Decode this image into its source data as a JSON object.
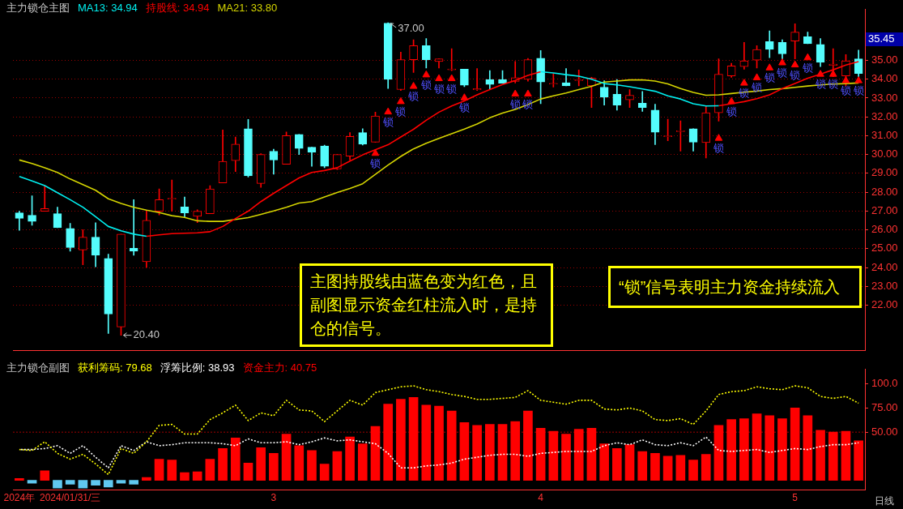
{
  "chart_data": [
    {
      "type": "candlestick",
      "title": "主力锁仓主图",
      "categories": [
        null,
        null,
        null,
        null,
        null,
        null,
        null,
        null,
        null,
        null,
        null,
        null,
        null,
        null,
        null,
        null,
        null,
        null,
        null,
        null,
        null,
        null,
        null,
        null,
        null,
        null,
        null,
        null,
        null,
        null,
        null,
        null,
        null,
        null,
        null,
        null,
        null,
        null,
        null,
        null,
        null,
        null,
        null,
        null,
        null,
        null,
        null,
        null,
        null,
        null,
        null,
        null,
        null,
        null,
        null,
        null,
        null,
        null,
        null,
        null,
        null,
        null,
        null,
        null,
        null,
        null,
        null
      ],
      "ohlc": [
        [
          26.9,
          26.99,
          25.97,
          26.61
        ],
        [
          26.77,
          27.81,
          26.24,
          26.45
        ],
        [
          26.99,
          28.35,
          26.99,
          27.13
        ],
        [
          26.86,
          27.2,
          26.11,
          26.11
        ],
        [
          26.07,
          26.34,
          24.86,
          25.06
        ],
        [
          24.93,
          26.01,
          24.14,
          25.61
        ],
        [
          25.61,
          26.38,
          24.04,
          24.65
        ],
        [
          24.48,
          24.71,
          20.5,
          21.53
        ],
        [
          20.84,
          25.77,
          20.4,
          25.77
        ],
        [
          25.02,
          27.6,
          24.65,
          24.86
        ],
        [
          24.3,
          27.03,
          24.0,
          26.5
        ],
        [
          26.99,
          28.17,
          26.79,
          27.6
        ],
        [
          27.63,
          28.65,
          26.99,
          27.67
        ],
        [
          27.22,
          27.74,
          26.65,
          26.9
        ],
        [
          26.72,
          27.06,
          26.38,
          26.99
        ],
        [
          26.86,
          28.35,
          26.86,
          28.17
        ],
        [
          28.49,
          31.3,
          28.49,
          29.64
        ],
        [
          29.68,
          30.93,
          29.1,
          30.55
        ],
        [
          31.37,
          31.86,
          28.8,
          28.87
        ],
        [
          28.46,
          30.05,
          28.25,
          30.0
        ],
        [
          30.18,
          30.28,
          28.96,
          29.71
        ],
        [
          29.48,
          31.2,
          29.48,
          31.0
        ],
        [
          31.07,
          31.07,
          30.0,
          30.32
        ],
        [
          30.39,
          30.39,
          29.37,
          30.12
        ],
        [
          30.46,
          30.5,
          29.3,
          29.37
        ],
        [
          29.23,
          30.0,
          29.2,
          30.0
        ],
        [
          29.91,
          31.16,
          29.71,
          30.96
        ],
        [
          31.16,
          31.37,
          30.5,
          30.55
        ],
        [
          30.66,
          32.25,
          30.66,
          32.05
        ],
        [
          36.98,
          37.0,
          33.51,
          33.99
        ],
        [
          33.45,
          35.44,
          33.4,
          35.04
        ],
        [
          35.04,
          36.1,
          34.36,
          35.78
        ],
        [
          35.78,
          36.16,
          34.6,
          35.04
        ],
        [
          34.94,
          35.08,
          34.6,
          35.08
        ],
        [
          34.5,
          35.62,
          34.46,
          34.55
        ],
        [
          34.53,
          34.53,
          33.6,
          33.68
        ],
        [
          33.44,
          34.57,
          33.4,
          33.5
        ],
        [
          33.99,
          34.46,
          33.45,
          33.72
        ],
        [
          33.99,
          34.46,
          33.79,
          33.79
        ],
        [
          33.88,
          34.94,
          33.8,
          34.08
        ],
        [
          33.99,
          35.1,
          33.9,
          35.04
        ],
        [
          35.12,
          35.52,
          32.7,
          33.85
        ],
        [
          33.74,
          34.3,
          33.58,
          33.78
        ],
        [
          33.81,
          34.57,
          33.65,
          33.65
        ],
        [
          33.93,
          34.49,
          33.65,
          33.97
        ],
        [
          33.65,
          34.1,
          32.5,
          34.06
        ],
        [
          33.58,
          33.92,
          32.63,
          33.04
        ],
        [
          33.2,
          33.99,
          32.36,
          32.63
        ],
        [
          32.9,
          33.45,
          32.5,
          33.15
        ],
        [
          32.73,
          33.35,
          32.29,
          32.5
        ],
        [
          32.36,
          32.67,
          30.53,
          31.18
        ],
        [
          30.95,
          31.88,
          30.73,
          30.99
        ],
        [
          31.22,
          31.79,
          30.18,
          31.26
        ],
        [
          31.37,
          31.37,
          30.18,
          30.66
        ],
        [
          30.63,
          32.58,
          29.82,
          32.22
        ],
        [
          32.22,
          35.08,
          31.77,
          34.26
        ],
        [
          34.17,
          34.85,
          34.1,
          34.71
        ],
        [
          34.67,
          35.96,
          34.53,
          34.98
        ],
        [
          35.01,
          35.78,
          34.6,
          35.58
        ],
        [
          36.0,
          36.57,
          35.14,
          35.58
        ],
        [
          35.96,
          36.1,
          35.08,
          35.35
        ],
        [
          36.03,
          36.94,
          35.08,
          36.5
        ],
        [
          36.26,
          36.5,
          35.89,
          35.89
        ],
        [
          35.85,
          36.16,
          34.67,
          34.9
        ],
        [
          34.74,
          35.62,
          34.13,
          34.8
        ],
        [
          34.17,
          35.31,
          33.65,
          34.98
        ],
        [
          35.08,
          35.55,
          34.13,
          34.3
        ]
      ],
      "colors": [
        "#54fcfc",
        "#54fcfc",
        "#ff0000",
        "#54fcfc",
        "#54fcfc",
        "#ff0000",
        "#54fcfc",
        "#54fcfc",
        "#ff0000",
        "#54fcfc",
        "#ff0000",
        "#ff0000",
        "#ff0000",
        "#54fcfc",
        "#ff0000",
        "#ff0000",
        "#ff0000",
        "#ff0000",
        "#54fcfc",
        "#ff0000",
        "#54fcfc",
        "#ff0000",
        "#54fcfc",
        "#54fcfc",
        "#54fcfc",
        "#ff0000",
        "#ff0000",
        "#54fcfc",
        "#ff0000",
        "#54fcfc",
        "#ff0000",
        "#ff0000",
        "#54fcfc",
        "#ff0000",
        "#ff0000",
        "#54fcfc",
        "#ff0000",
        "#54fcfc",
        "#54fcfc",
        "#ff0000",
        "#ff0000",
        "#54fcfc",
        "#ff0000",
        "#54fcfc",
        "#ff0000",
        "#ff0000",
        "#54fcfc",
        "#54fcfc",
        "#ff0000",
        "#54fcfc",
        "#54fcfc",
        "#ff0000",
        "#ff0000",
        "#54fcfc",
        "#ff0000",
        "#ff0000",
        "#ff0000",
        "#ff0000",
        "#ff0000",
        "#54fcfc",
        "#54fcfc",
        "#ff0000",
        "#54fcfc",
        "#54fcfc",
        "#ff0000",
        "#ff0000",
        "#54fcfc"
      ],
      "series": [
        {
          "name": "MA13: 34.94",
          "type": "line",
          "color": "#00f0f0",
          "values": [
            28.83,
            28.6,
            28.35,
            27.97,
            27.6,
            27.2,
            26.7,
            26.18,
            25.95,
            25.77,
            25.66,
            null,
            null,
            null,
            null,
            null,
            null,
            null,
            null,
            null,
            null,
            null,
            null,
            null,
            null,
            null,
            null,
            null,
            null,
            null,
            null,
            null,
            null,
            null,
            null,
            null,
            null,
            null,
            null,
            null,
            null,
            34.4,
            34.33,
            34.24,
            34.16,
            34.0,
            33.77,
            33.7,
            33.6,
            33.48,
            33.36,
            33.12,
            32.95,
            32.7,
            32.58,
            32.59,
            null,
            null,
            null,
            null,
            null,
            null,
            null,
            null,
            null,
            null,
            null
          ]
        },
        {
          "name": "持股线: 34.94",
          "type": "line",
          "color": "#ff0000",
          "values": [
            null,
            null,
            null,
            null,
            null,
            null,
            null,
            null,
            null,
            null,
            25.66,
            25.73,
            25.8,
            25.82,
            25.84,
            25.9,
            26.18,
            26.6,
            26.99,
            27.5,
            27.94,
            28.35,
            28.76,
            29.05,
            29.15,
            29.3,
            29.65,
            29.98,
            30.25,
            30.52,
            30.93,
            31.34,
            31.82,
            32.25,
            32.58,
            32.85,
            33.17,
            33.45,
            33.72,
            33.93,
            34.2,
            34.4,
            null,
            null,
            null,
            null,
            null,
            null,
            null,
            null,
            null,
            null,
            null,
            null,
            null,
            32.59,
            32.7,
            32.81,
            32.97,
            33.17,
            33.5,
            33.77,
            34.05,
            34.27,
            34.5,
            34.75,
            34.94
          ]
        },
        {
          "name": "MA21: 33.80",
          "type": "line",
          "color": "#d4d400",
          "values": [
            29.71,
            29.52,
            29.3,
            29.05,
            28.7,
            28.4,
            28.1,
            27.65,
            27.4,
            27.2,
            27.05,
            26.92,
            26.75,
            26.66,
            26.48,
            26.45,
            26.45,
            26.55,
            26.65,
            26.82,
            27.0,
            27.2,
            27.42,
            27.5,
            27.75,
            27.98,
            28.2,
            28.45,
            28.95,
            29.44,
            29.9,
            30.3,
            30.6,
            30.86,
            31.1,
            31.35,
            31.62,
            31.95,
            32.2,
            32.4,
            32.65,
            32.95,
            33.12,
            33.27,
            33.45,
            33.62,
            33.85,
            33.9,
            33.96,
            33.97,
            33.9,
            33.75,
            33.5,
            33.3,
            33.15,
            33.17,
            33.24,
            33.31,
            33.37,
            33.45,
            33.5,
            33.57,
            33.64,
            33.7,
            33.74,
            33.77,
            33.8
          ]
        },
        {
          "type": "scatter",
          "color": "#ff0000",
          "marker": "triangle",
          "values": [
            null,
            null,
            null,
            null,
            null,
            null,
            null,
            null,
            null,
            null,
            null,
            null,
            null,
            null,
            null,
            null,
            null,
            null,
            null,
            null,
            null,
            null,
            null,
            null,
            null,
            null,
            null,
            null,
            30.06,
            32.26,
            32.81,
            33.62,
            34.23,
            34.03,
            34.03,
            33.01,
            null,
            null,
            null,
            33.21,
            33.21,
            null,
            null,
            null,
            null,
            null,
            null,
            null,
            null,
            null,
            null,
            null,
            null,
            null,
            null,
            30.86,
            32.81,
            33.79,
            34.08,
            34.6,
            34.87,
            34.76,
            35.14,
            34.26,
            34.26,
            33.92,
            33.92
          ],
          "value_labels": [
            null,
            null,
            null,
            null,
            null,
            null,
            null,
            null,
            null,
            null,
            null,
            null,
            null,
            null,
            null,
            null,
            null,
            null,
            null,
            null,
            null,
            null,
            null,
            null,
            null,
            null,
            null,
            null,
            "锁",
            "锁",
            "锁",
            "锁",
            "锁",
            "锁",
            "锁",
            "锁",
            null,
            null,
            null,
            "锁",
            "锁",
            null,
            null,
            null,
            null,
            null,
            null,
            null,
            null,
            null,
            null,
            null,
            null,
            null,
            null,
            "锁",
            "锁",
            "锁",
            "锁",
            "锁",
            "锁",
            "锁",
            "锁",
            "锁",
            "锁",
            "锁",
            "锁"
          ]
        }
      ],
      "ylim": [
        19.6,
        37.7
      ],
      "yticks": [
        {
          "value": 22,
          "label": "22.00"
        },
        {
          "value": 23,
          "label": "23.00"
        },
        {
          "value": 24,
          "label": "24.00"
        },
        {
          "value": 25,
          "label": "25.00"
        },
        {
          "value": 26,
          "label": "26.00"
        },
        {
          "value": 27,
          "label": "27.00"
        },
        {
          "value": 28,
          "label": "28.00"
        },
        {
          "value": 29,
          "label": "29.00"
        },
        {
          "value": 30,
          "label": "30.00"
        },
        {
          "value": 31,
          "label": "31.00"
        },
        {
          "value": 32,
          "label": "32.00"
        },
        {
          "value": 33,
          "label": "33.00"
        },
        {
          "value": 34,
          "label": "34.00"
        },
        {
          "value": 35,
          "label": "35.00"
        }
      ],
      "grid": "y",
      "tick_labels": "y",
      "annotations": [
        "37.00",
        "20.40",
        "35.45",
        "主图持股线由蓝色变为红色，且副图显示资金红柱流入时，是持仓的信号。",
        "“锁”信号表明主力资金持续流入"
      ]
    },
    {
      "type": "bar",
      "title": "主力锁仓副图",
      "categories": [
        "2024年",
        null,
        null,
        null,
        "2024/01/31/三",
        null,
        null,
        null,
        null,
        null,
        null,
        null,
        null,
        null,
        null,
        null,
        null,
        null,
        null,
        null,
        "3",
        null,
        null,
        null,
        null,
        null,
        null,
        null,
        null,
        null,
        null,
        null,
        null,
        null,
        null,
        null,
        null,
        null,
        null,
        null,
        null,
        "4",
        null,
        null,
        null,
        null,
        null,
        null,
        null,
        null,
        null,
        null,
        null,
        null,
        null,
        null,
        null,
        null,
        null,
        null,
        null,
        "5",
        null,
        null,
        null,
        null,
        null
      ],
      "series": [
        {
          "name": "获利筹码: 79.68",
          "type": "line",
          "color": "#ffff00",
          "line_style": "dotted",
          "values": [
            32,
            31,
            40,
            28,
            22,
            27,
            17,
            6,
            33,
            28,
            40,
            57,
            58,
            48,
            48,
            63,
            70,
            78,
            62,
            70,
            67,
            83,
            73,
            72,
            61,
            72,
            83,
            78,
            91,
            94,
            97,
            98,
            94,
            92,
            89,
            87,
            84,
            84,
            85,
            86,
            93,
            83,
            81,
            79,
            83,
            83,
            74,
            73,
            75,
            72,
            63,
            62,
            64,
            58,
            72,
            89,
            92,
            93,
            97,
            95,
            94,
            98,
            96,
            87,
            85,
            87,
            80
          ]
        },
        {
          "name": "浮筹比例: 38.93",
          "type": "line",
          "color": "#ffffff",
          "line_style": "dotted",
          "values": [
            32,
            32,
            33,
            36,
            28,
            36,
            24,
            13,
            36,
            31,
            40,
            36,
            37,
            39,
            39,
            39,
            38,
            36,
            43,
            39,
            39,
            40,
            37,
            40,
            44,
            41,
            42,
            40,
            38,
            28,
            13,
            13,
            15,
            16,
            18,
            22,
            24,
            26,
            27,
            27,
            25,
            28,
            29,
            30,
            30,
            30,
            36,
            39,
            37,
            42,
            37,
            36,
            39,
            36,
            45,
            31,
            30,
            31,
            32,
            29,
            31,
            33,
            32,
            35,
            37,
            37,
            39
          ]
        },
        {
          "name": "资金主力: 40.75",
          "color": "#ff0000",
          "values": [
            2,
            -3,
            10,
            -8,
            -4,
            -8,
            -5,
            -7,
            -3,
            -4,
            3,
            22,
            21,
            8,
            9,
            22,
            33,
            44,
            18,
            34,
            28,
            48,
            36,
            31,
            17,
            30,
            45,
            38,
            56,
            79,
            84,
            86,
            78,
            77,
            72,
            60,
            57,
            58,
            58,
            61,
            72,
            54,
            51,
            48,
            53,
            54,
            38,
            33,
            37,
            30,
            28,
            25,
            26,
            21,
            27,
            57,
            63,
            64,
            69,
            67,
            64,
            75,
            67,
            52,
            50,
            51,
            41
          ],
          "colors": [
            "#ff0000",
            "#60c8f0",
            "#ff0000",
            "#60c8f0",
            "#60c8f0",
            "#60c8f0",
            "#60c8f0",
            "#60c8f0",
            "#60c8f0",
            "#60c8f0",
            "#ff0000",
            "#ff0000",
            "#ff0000",
            "#ff0000",
            "#ff0000",
            "#ff0000",
            "#ff0000",
            "#ff0000",
            "#ff0000",
            "#ff0000",
            "#ff0000",
            "#ff0000",
            "#ff0000",
            "#ff0000",
            "#ff0000",
            "#ff0000",
            "#ff0000",
            "#ff0000",
            "#ff0000",
            "#ff0000",
            "#ff0000",
            "#ff0000",
            "#ff0000",
            "#ff0000",
            "#ff0000",
            "#ff0000",
            "#ff0000",
            "#ff0000",
            "#ff0000",
            "#ff0000",
            "#ff0000",
            "#ff0000",
            "#ff0000",
            "#ff0000",
            "#ff0000",
            "#ff0000",
            "#ff0000",
            "#ff0000",
            "#ff0000",
            "#ff0000",
            "#ff0000",
            "#ff0000",
            "#ff0000",
            "#ff0000",
            "#ff0000",
            "#ff0000",
            "#ff0000",
            "#ff0000",
            "#ff0000",
            "#ff0000",
            "#ff0000",
            "#ff0000",
            "#ff0000",
            "#ff0000",
            "#ff0000",
            "#ff0000",
            "#ff0000"
          ]
        }
      ],
      "ylim": [
        -10,
        115
      ],
      "yticks": [
        {
          "value": 50,
          "label": "50.00"
        },
        {
          "value": 75,
          "label": "75.00"
        },
        {
          "value": 100,
          "label": "100.0"
        }
      ],
      "ref_lines": [
        {
          "axis": "y",
          "value": 50,
          "color": "#a00000",
          "line_style": "dotted"
        }
      ],
      "annotations": [
        "日线"
      ]
    }
  ]
}
